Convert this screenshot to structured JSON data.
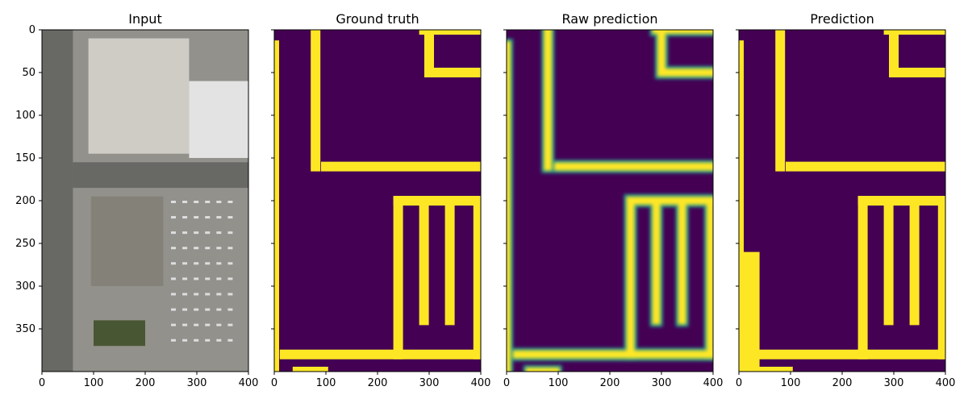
{
  "figure": {
    "background": "#ffffff"
  },
  "colors": {
    "background_class": "#440154",
    "foreground_class": "#fde725",
    "mid_class": "#21918c",
    "aerial_road": "#6d6e6a",
    "aerial_roof_light": "#d9d6cf",
    "aerial_roof_white": "#eeeeee",
    "aerial_roof_grey": "#8a877f",
    "aerial_lot": "#9a9893",
    "aerial_tree": "#4d5a36"
  },
  "chart_data": [
    {
      "type": "heatmap",
      "title": "Input",
      "xlabel": "",
      "ylabel": "",
      "xlim": [
        0,
        400
      ],
      "ylim": [
        400,
        0
      ],
      "xticks": [
        0,
        100,
        200,
        300,
        400
      ],
      "yticks": [
        0,
        50,
        100,
        150,
        200,
        250,
        300,
        350
      ],
      "show_y_labels": true,
      "content": "aerial-image"
    },
    {
      "type": "heatmap",
      "title": "Ground truth",
      "xlabel": "",
      "ylabel": "",
      "xlim": [
        0,
        400
      ],
      "ylim": [
        400,
        0
      ],
      "xticks": [
        0,
        100,
        200,
        300,
        400
      ],
      "yticks": [
        0,
        50,
        100,
        150,
        200,
        250,
        300,
        350
      ],
      "show_y_labels": false,
      "content": "mask"
    },
    {
      "type": "heatmap",
      "title": "Raw prediction",
      "xlabel": "",
      "ylabel": "",
      "xlim": [
        0,
        400
      ],
      "ylim": [
        400,
        0
      ],
      "xticks": [
        0,
        100,
        200,
        300,
        400
      ],
      "yticks": [
        0,
        50,
        100,
        150,
        200,
        250,
        300,
        350
      ],
      "show_y_labels": false,
      "content": "soft-mask"
    },
    {
      "type": "heatmap",
      "title": "Prediction",
      "xlabel": "",
      "ylabel": "",
      "xlim": [
        0,
        400
      ],
      "ylim": [
        400,
        0
      ],
      "xticks": [
        0,
        100,
        200,
        300,
        400
      ],
      "yticks": [
        0,
        50,
        100,
        150,
        200,
        250,
        300,
        350
      ],
      "show_y_labels": false,
      "content": "mask"
    }
  ],
  "road_segments": [
    [
      0,
      18,
      0,
      400
    ],
    [
      45,
      400,
      65,
      400
    ],
    [
      65,
      400,
      95,
      400
    ],
    [
      100,
      160,
      400,
      160
    ],
    [
      80,
      0,
      80,
      160
    ],
    [
      290,
      0,
      400,
      0
    ],
    [
      300,
      0,
      300,
      50
    ],
    [
      300,
      50,
      400,
      50
    ],
    [
      240,
      200,
      400,
      200
    ],
    [
      240,
      200,
      240,
      380
    ],
    [
      290,
      200,
      290,
      340
    ],
    [
      340,
      200,
      340,
      340
    ],
    [
      395,
      200,
      395,
      380
    ],
    [
      20,
      380,
      400,
      380
    ]
  ]
}
